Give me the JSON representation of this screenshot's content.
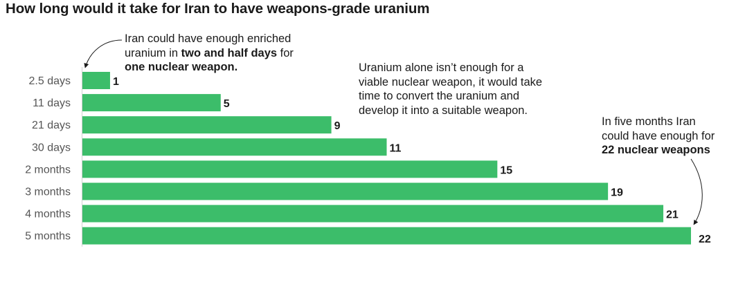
{
  "chart_data": {
    "type": "bar",
    "orientation": "horizontal",
    "title": "How long would it take for Iran to have weapons-grade uranium",
    "categories": [
      "2.5 days",
      "11 days",
      "21 days",
      "30 days",
      "2 months",
      "3 months",
      "4 months",
      "5 months"
    ],
    "values": [
      1,
      5,
      9,
      11,
      15,
      19,
      21,
      22
    ],
    "value_labels": [
      "1",
      "5",
      "9",
      "11",
      "15",
      "19",
      "21",
      "22"
    ],
    "xlim": [
      0,
      22
    ],
    "grid": false,
    "bar_color": "#3cbd6a",
    "annotations": {
      "first_bar": {
        "text_1": "Iran could have enough enriched",
        "text_2a": "uranium in ",
        "text_2b": "two and half days",
        "text_2c": " for",
        "text_3": "one nuclear weapon."
      },
      "middle": {
        "lines": [
          "Uranium alone isn’t enough for a",
          "viable nuclear weapon, it would take",
          "time to convert the uranium and",
          "develop it into a suitable weapon."
        ]
      },
      "last_bar": {
        "text_1": "In five months Iran",
        "text_2": "could have enough for",
        "text_3": "22 nuclear weapons"
      }
    }
  }
}
